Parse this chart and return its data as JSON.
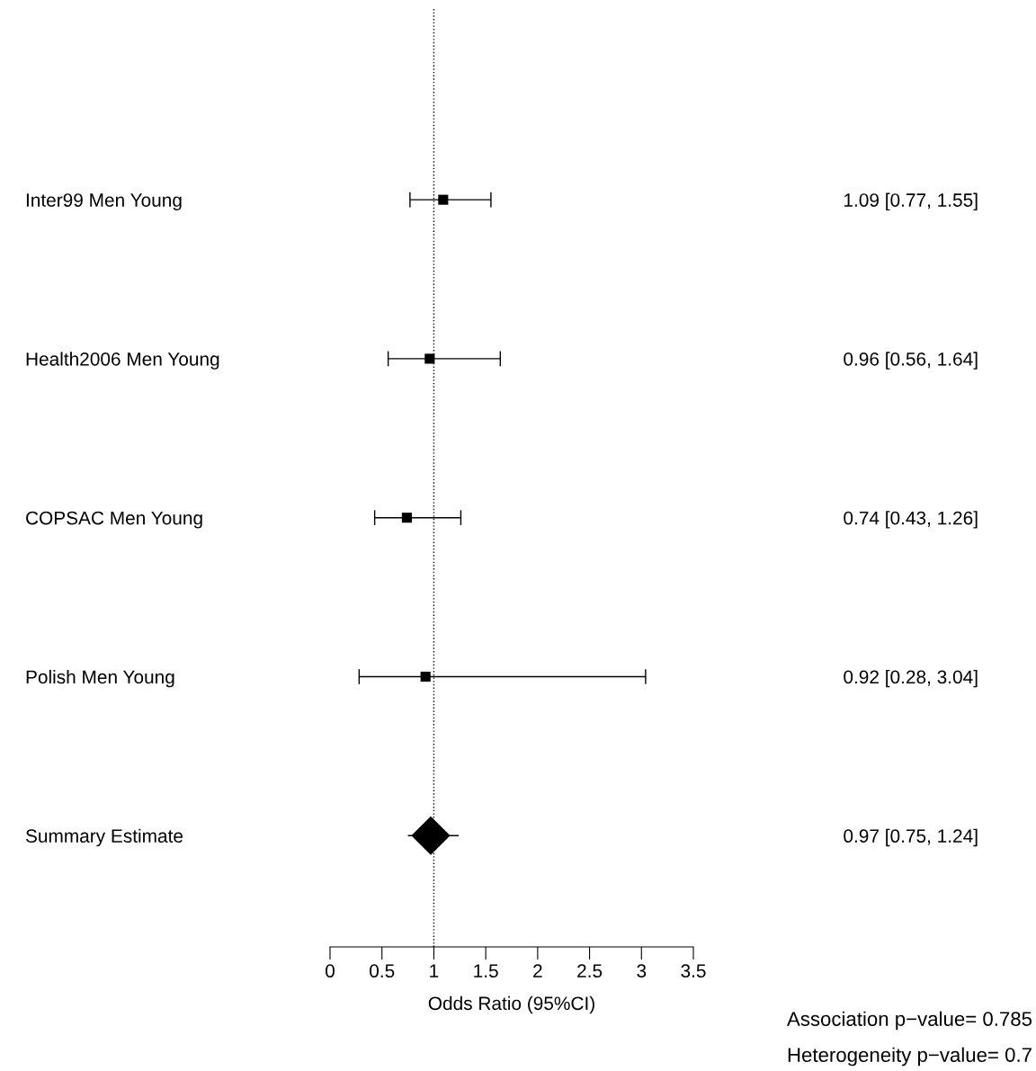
{
  "chart_data": {
    "type": "scatter",
    "orientation": "horizontal",
    "categories": [
      "Inter99 Men Young",
      "Health2006 Men Young",
      "COPSAC Men Young",
      "Polish Men Young",
      "Summary Estimate"
    ],
    "series": [
      {
        "color": "#000000",
        "marker": "square",
        "values": [
          1.09,
          0.96,
          0.74,
          0.92,
          null
        ],
        "errors": [
          [
            0.77,
            1.55
          ],
          [
            0.56,
            1.64
          ],
          [
            0.43,
            1.26
          ],
          [
            0.28,
            3.04
          ],
          null
        ]
      },
      {
        "color": "#000000",
        "marker": "diamond",
        "values": [
          null,
          null,
          null,
          null,
          0.97
        ],
        "errors": [
          null,
          null,
          null,
          null,
          [
            0.75,
            1.24
          ]
        ]
      }
    ],
    "value_labels": [
      "1.09 [0.77, 1.55]",
      "0.96 [0.56, 1.64]",
      "0.74 [0.43, 1.26]",
      "0.92 [0.28, 3.04]",
      "0.97 [0.75, 1.24]"
    ],
    "xlim": [
      0,
      3.5
    ],
    "xticks": [
      0,
      0.5,
      1,
      1.5,
      2,
      2.5,
      3,
      3.5
    ],
    "xlabel": "Odds Ratio (95%CI)",
    "ref_lines": [
      {
        "axis": "x",
        "value": 1,
        "line_style": "dotted",
        "color": "#000000"
      }
    ],
    "annotations": [
      "Association p−value= 0.785",
      "Heterogeneity p−value= 0.7"
    ],
    "grid": false
  }
}
